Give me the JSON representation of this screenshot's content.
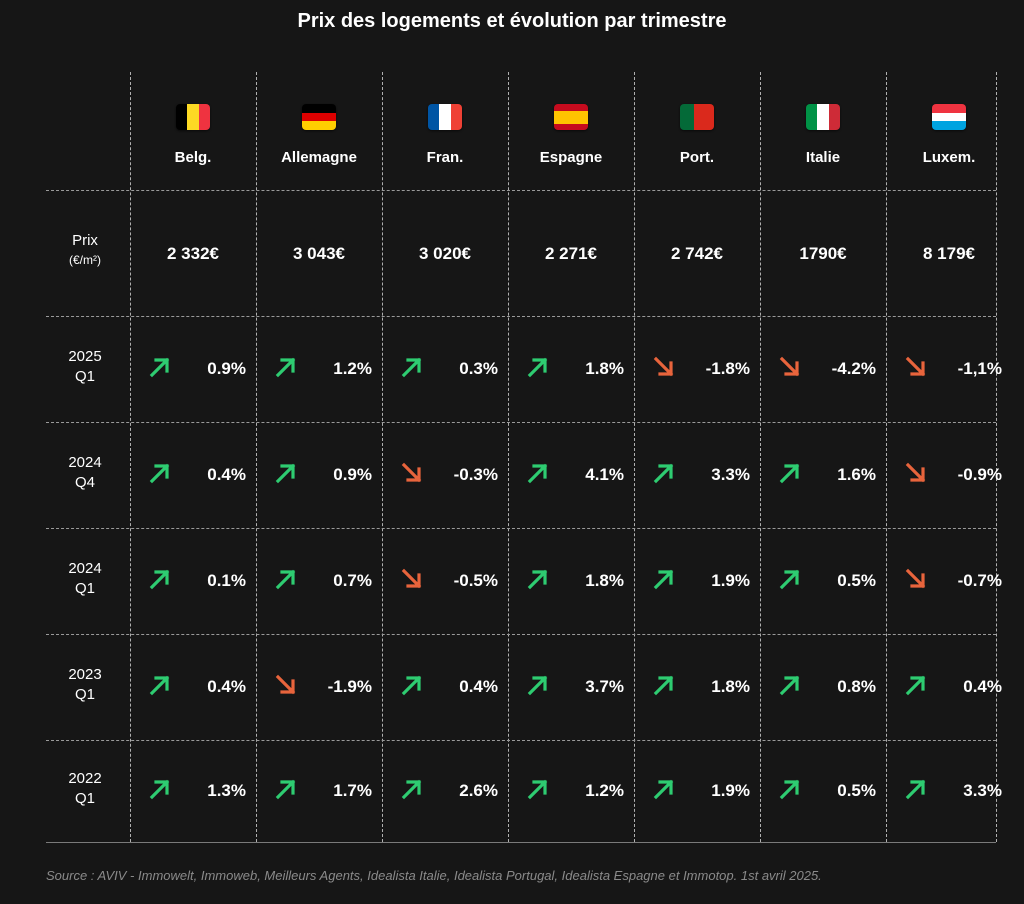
{
  "title": "Prix des logements et évolution par trimestre",
  "colors": {
    "background": "#161616",
    "up": "#2ecc71",
    "down": "#e8643c",
    "text": "#ffffff",
    "source": "#8a8a8a"
  },
  "icons": {
    "up": "arrow-up-right-icon",
    "down": "arrow-down-right-icon"
  },
  "price_label": {
    "line1": "Prix",
    "unit": "(€/m²)"
  },
  "chart_data": {
    "type": "table",
    "title": "Prix des logements et évolution par trimestre",
    "countries": [
      {
        "label": "Belg.",
        "flag": "belgium",
        "flag_colors": [
          "#000000",
          "#fdda24",
          "#ef3340"
        ],
        "flag_orientation": "vertical"
      },
      {
        "label": "Allemagne",
        "flag": "germany",
        "flag_colors": [
          "#000000",
          "#dd0000",
          "#ffce00"
        ],
        "flag_orientation": "horizontal"
      },
      {
        "label": "Fran.",
        "flag": "france",
        "flag_colors": [
          "#0055a4",
          "#ffffff",
          "#ef4135"
        ],
        "flag_orientation": "vertical"
      },
      {
        "label": "Espagne",
        "flag": "spain",
        "flag_colors": [
          "#c60b1e",
          "#ffc400",
          "#c60b1e"
        ],
        "flag_orientation": "horizontal"
      },
      {
        "label": "Port.",
        "flag": "portugal",
        "flag_colors": [
          "#046a38",
          "#da291c",
          "#da291c"
        ],
        "flag_orientation": "vertical"
      },
      {
        "label": "Italie",
        "flag": "italy",
        "flag_colors": [
          "#009246",
          "#ffffff",
          "#ce2b37"
        ],
        "flag_orientation": "vertical"
      },
      {
        "label": "Luxem.",
        "flag": "luxembourg",
        "flag_colors": [
          "#ef3340",
          "#ffffff",
          "#00a3e0"
        ],
        "flag_orientation": "horizontal"
      }
    ],
    "prices": [
      "2 332€",
      "3 043€",
      "3 020€",
      "2 271€",
      "2 742€",
      "1790€",
      "8 179€"
    ],
    "price_values": [
      2332,
      3043,
      3020,
      2271,
      2742,
      1790,
      8179
    ],
    "quarters": [
      {
        "year": "2025",
        "q": "Q1",
        "values": [
          "0.9%",
          "1.2%",
          "0.3%",
          "1.8%",
          "-1.8%",
          "-4.2%",
          "-1,1%"
        ],
        "numbers": [
          0.9,
          1.2,
          0.3,
          1.8,
          -1.8,
          -4.2,
          -1.1
        ]
      },
      {
        "year": "2024",
        "q": "Q4",
        "values": [
          "0.4%",
          "0.9%",
          "-0.3%",
          "4.1%",
          "3.3%",
          "1.6%",
          "-0.9%"
        ],
        "numbers": [
          0.4,
          0.9,
          -0.3,
          4.1,
          3.3,
          1.6,
          -0.9
        ]
      },
      {
        "year": "2024",
        "q": "Q1",
        "values": [
          "0.1%",
          "0.7%",
          "-0.5%",
          "1.8%",
          "1.9%",
          "0.5%",
          "-0.7%"
        ],
        "numbers": [
          0.1,
          0.7,
          -0.5,
          1.8,
          1.9,
          0.5,
          -0.7
        ]
      },
      {
        "year": "2023",
        "q": "Q1",
        "values": [
          "0.4%",
          "-1.9%",
          "0.4%",
          "3.7%",
          "1.8%",
          "0.8%",
          "0.4%"
        ],
        "numbers": [
          0.4,
          -1.9,
          0.4,
          3.7,
          1.8,
          0.8,
          0.4
        ]
      },
      {
        "year": "2022",
        "q": "Q1",
        "values": [
          "1.3%",
          "1.7%",
          "2.6%",
          "1.2%",
          "1.9%",
          "0.5%",
          "3.3%"
        ],
        "numbers": [
          1.3,
          1.7,
          2.6,
          1.2,
          1.9,
          0.5,
          3.3
        ]
      }
    ]
  },
  "source": "Source : AVIV - Immowelt, Immoweb, Meilleurs Agents, Idealista Italie, Idealista Portugal, Idealista Espagne et Immotop. 1st avril 2025."
}
